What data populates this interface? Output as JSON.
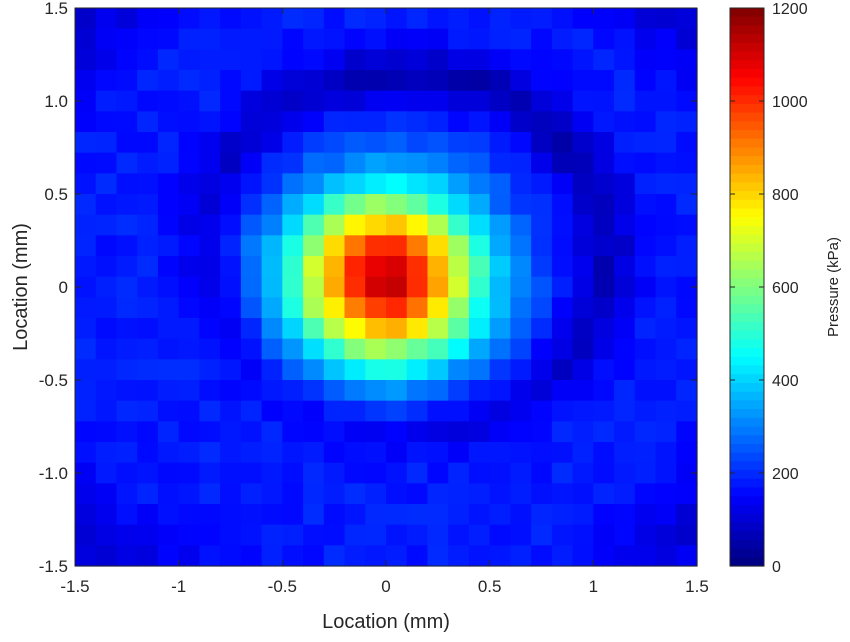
{
  "chart_data": {
    "type": "heatmap",
    "title": "",
    "xlabel": "Location (mm)",
    "ylabel": "Location (mm)",
    "xlim": [
      -1.5,
      1.5
    ],
    "ylim": [
      -1.5,
      1.5
    ],
    "x_ticks": [
      -1.5,
      -1,
      -0.5,
      0,
      0.5,
      1,
      1.5
    ],
    "x_tick_labels": [
      "-1.5",
      "-1",
      "-0.5",
      "0",
      "0.5",
      "1",
      "1.5"
    ],
    "y_ticks": [
      -1.5,
      -1.0,
      -0.5,
      0,
      0.5,
      1.0,
      1.5
    ],
    "y_tick_labels": [
      "-1.5",
      "-1.0",
      "-0.5",
      "0",
      "0.5",
      "1.0",
      "1.5"
    ],
    "grid": false,
    "colormap": "jet",
    "grid_cells": {
      "nx": 30,
      "ny": 27
    },
    "peak": {
      "x": 0.0,
      "y": 0.05,
      "value": 1120
    },
    "focal_spot_fwhm_mm": 0.75,
    "background_kPa": 180,
    "dark_ring_kPa": 60,
    "colorbar": {
      "label": "Pressure (kPa)",
      "range": [
        0,
        1200
      ],
      "ticks": [
        0,
        200,
        400,
        600,
        800,
        1000,
        1200
      ],
      "tick_labels": [
        "0",
        "200",
        "400",
        "600",
        "800",
        "1000",
        "1200"
      ]
    }
  }
}
